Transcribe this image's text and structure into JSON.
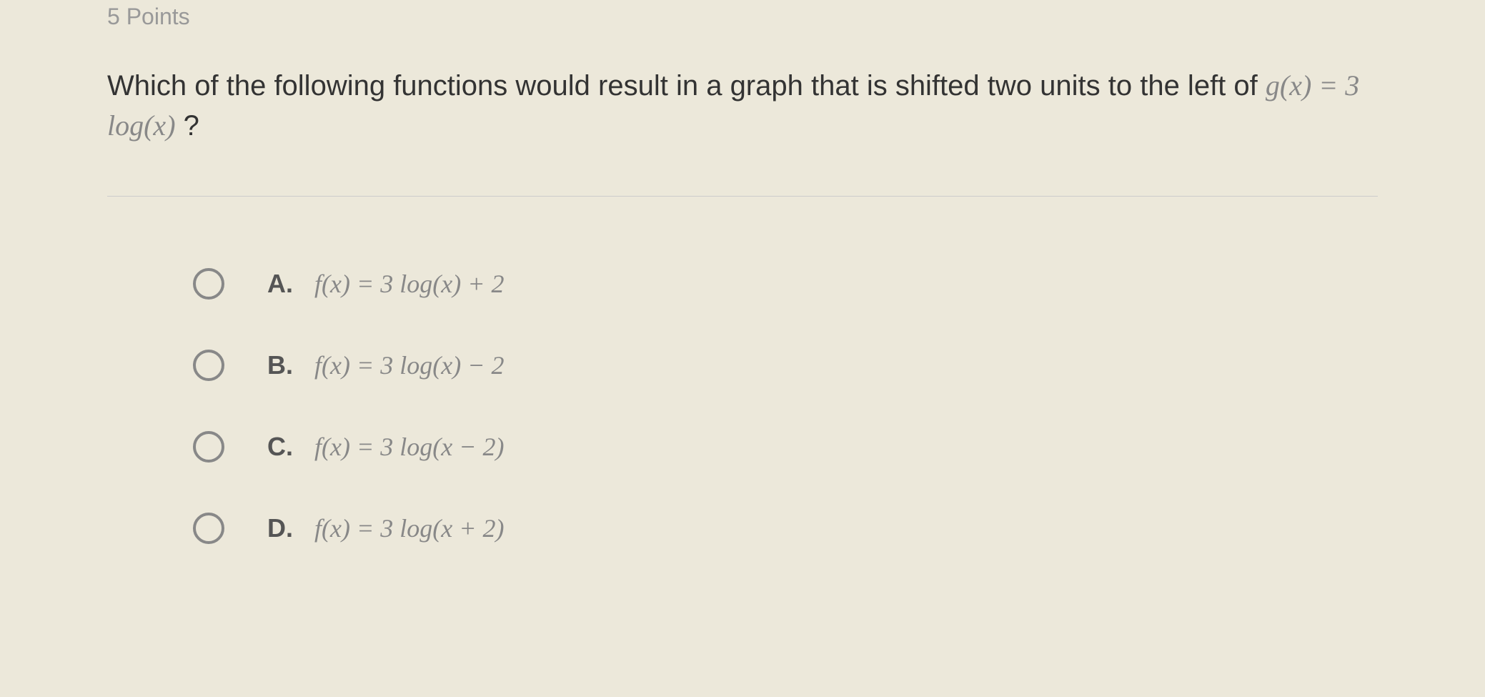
{
  "header": {
    "points_label": "5 Points"
  },
  "question": {
    "prompt_part1": "Which of the following functions would result in a graph that is shifted two units to the left of ",
    "equation": "g(x) = 3 log(x)",
    "prompt_part2": " ?"
  },
  "options": [
    {
      "letter": "A.",
      "equation": "f(x) = 3 log(x) + 2"
    },
    {
      "letter": "B.",
      "equation": "f(x) = 3 log(x) − 2"
    },
    {
      "letter": "C.",
      "equation": "f(x) = 3 log(x − 2)"
    },
    {
      "letter": "D.",
      "equation": "f(x) = 3 log(x + 2)"
    }
  ],
  "styling": {
    "background_color": "#ece8da",
    "text_color": "#333333",
    "muted_color": "#888888",
    "points_fontsize": 32,
    "question_fontsize": 40,
    "option_fontsize": 36,
    "radio_border_color": "#888888",
    "radio_size": 44,
    "font_family_main": "Arial, Helvetica, sans-serif",
    "font_family_equation": "Times New Roman, serif"
  }
}
